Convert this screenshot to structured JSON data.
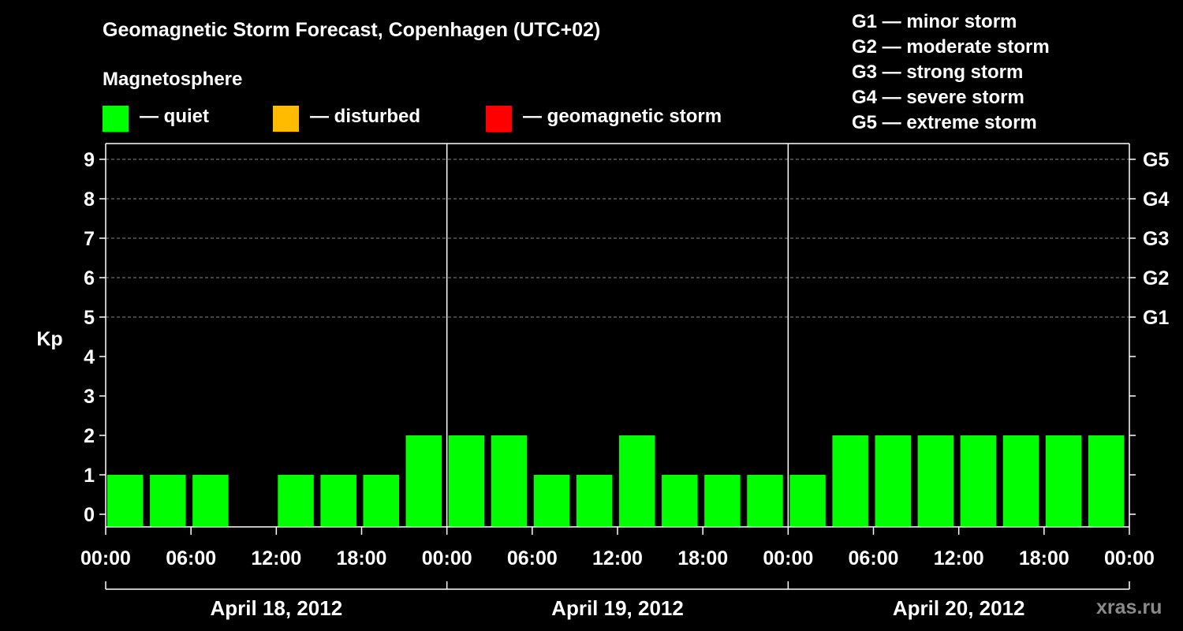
{
  "chart_data": {
    "type": "bar",
    "title": "Geomagnetic Storm Forecast, Copenhagen (UTC+02)",
    "ylabel": "Kp",
    "ylim": [
      0,
      9
    ],
    "yticks": [
      "0",
      "1",
      "2",
      "3",
      "4",
      "5",
      "6",
      "7",
      "8",
      "9"
    ],
    "storm_scale_ticks": [
      {
        "kp": 5,
        "label": "G1"
      },
      {
        "kp": 6,
        "label": "G2"
      },
      {
        "kp": 7,
        "label": "G3"
      },
      {
        "kp": 8,
        "label": "G4"
      },
      {
        "kp": 9,
        "label": "G5"
      }
    ],
    "storm_scale_legend": [
      "G1 — minor storm",
      "G2 — moderate storm",
      "G3 — strong storm",
      "G4 — severe storm",
      "G5 — extreme storm"
    ],
    "legend_title": "Magnetosphere",
    "legend": [
      {
        "label": "— quiet",
        "color": "#00ff00"
      },
      {
        "label": "— disturbed",
        "color": "#ffbb00"
      },
      {
        "label": "— geomagnetic storm",
        "color": "#ff0000"
      }
    ],
    "x_tick_labels": [
      "00:00",
      "06:00",
      "12:00",
      "18:00",
      "00:00",
      "06:00",
      "12:00",
      "18:00",
      "00:00",
      "06:00",
      "12:00",
      "18:00",
      "00:00"
    ],
    "days": [
      "April 18, 2012",
      "April 19, 2012",
      "April 20, 2012"
    ],
    "interval_hours": 3,
    "series": [
      {
        "color": "#00ff00",
        "values": [
          1,
          1,
          1,
          null,
          1,
          1,
          1,
          2,
          2,
          2,
          1,
          1,
          2,
          1,
          1,
          1,
          1,
          2,
          2,
          2,
          2,
          2,
          2,
          2
        ]
      }
    ],
    "grid": "dashed horizontal at Kp 5–9"
  },
  "watermark": "xras.ru"
}
